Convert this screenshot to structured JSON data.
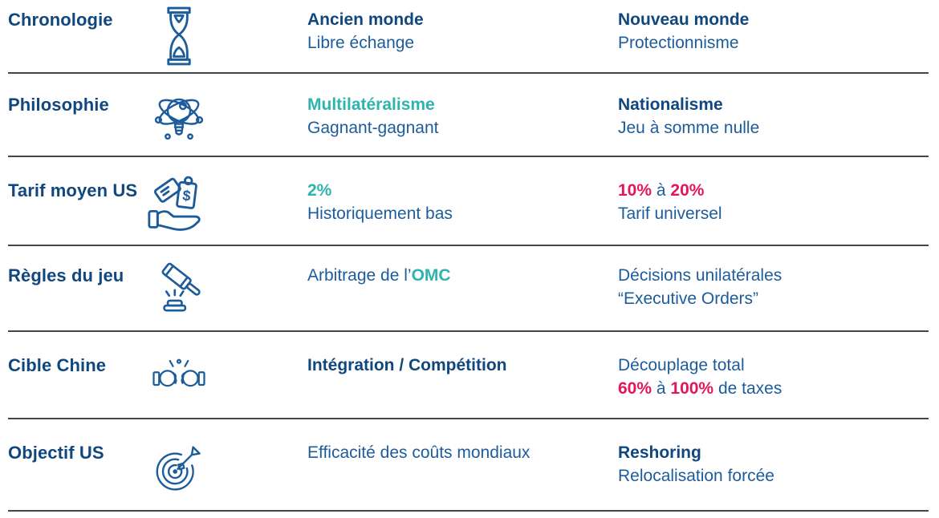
{
  "palette": {
    "navy_bold": "#10477E",
    "body_blue": "#1D5C9B",
    "teal_accent": "#2EB4AE",
    "pink_accent": "#E2175B",
    "divider_gray": "#454545",
    "icon_stroke": "#1D5C9B"
  },
  "rows": [
    {
      "label": "Chronologie",
      "icon": "hourglass-icon",
      "old": [
        [
          {
            "t": "Ancien monde",
            "s": "navy"
          }
        ],
        [
          {
            "t": "Libre échange",
            "s": "blue"
          }
        ]
      ],
      "new": [
        [
          {
            "t": "Nouveau monde",
            "s": "navy"
          }
        ],
        [
          {
            "t": "Protectionnisme",
            "s": "blue"
          }
        ]
      ]
    },
    {
      "label": "Philosophie",
      "icon": "atom-lightbulb-icon",
      "old": [
        [
          {
            "t": "Multilatéralisme",
            "s": "teal"
          }
        ],
        [
          {
            "t": "Gagnant-gagnant",
            "s": "blue"
          }
        ]
      ],
      "new": [
        [
          {
            "t": "Nationalisme",
            "s": "navy"
          }
        ],
        [
          {
            "t": "Jeu à somme nulle",
            "s": "blue"
          }
        ]
      ]
    },
    {
      "label": "Tarif moyen US",
      "icon": "price-tag-hand-icon",
      "old": [
        [
          {
            "t": "2%",
            "s": "teal"
          }
        ],
        [
          {
            "t": "Historiquement bas",
            "s": "blue"
          }
        ]
      ],
      "new": [
        [
          {
            "t": "10%",
            "s": "pink"
          },
          {
            "t": " à ",
            "s": "blue"
          },
          {
            "t": "20%",
            "s": "pink"
          }
        ],
        [
          {
            "t": "Tarif universel",
            "s": "blue"
          }
        ]
      ]
    },
    {
      "label": "Règles du jeu",
      "icon": "gavel-icon",
      "old": [
        [
          {
            "t": "Arbitrage de l’",
            "s": "blue"
          },
          {
            "t": "OMC",
            "s": "teal"
          }
        ]
      ],
      "new": [
        [
          {
            "t": "Décisions unilatérales",
            "s": "blue"
          }
        ],
        [
          {
            "t": "“Executive Orders”",
            "s": "blue"
          }
        ]
      ]
    },
    {
      "label": "Cible Chine",
      "icon": "fist-bump-icon",
      "old": [
        [
          {
            "t": "Intégration / Compétition",
            "s": "navy"
          }
        ]
      ],
      "new": [
        [
          {
            "t": "Découplage total",
            "s": "blue"
          }
        ],
        [
          {
            "t": "60%",
            "s": "pink"
          },
          {
            "t": " à ",
            "s": "blue"
          },
          {
            "t": "100%",
            "s": "pink"
          },
          {
            "t": " de taxes",
            "s": "blue"
          }
        ]
      ]
    },
    {
      "label": "Objectif US",
      "icon": "target-dart-icon",
      "old": [
        [
          {
            "t": "Efficacité des coûts mondiaux",
            "s": "blue"
          }
        ]
      ],
      "new": [
        [
          {
            "t": "Reshoring",
            "s": "navy"
          }
        ],
        [
          {
            "t": "Relocalisation forcée",
            "s": "blue"
          }
        ]
      ]
    }
  ]
}
